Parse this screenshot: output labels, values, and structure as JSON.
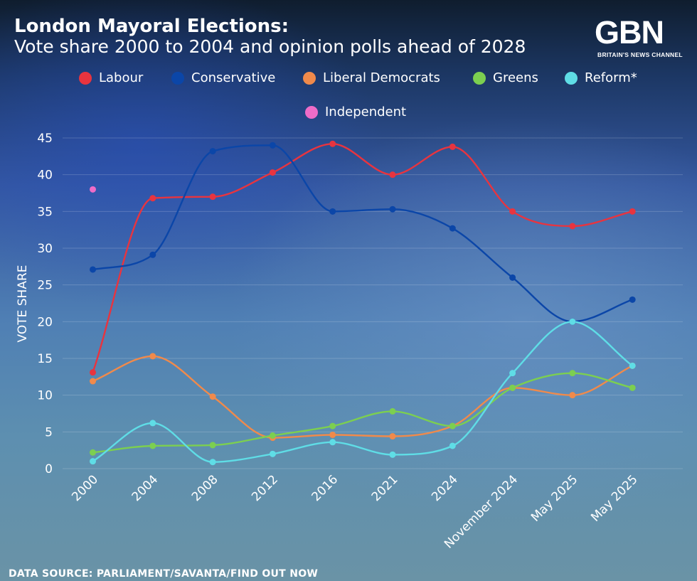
{
  "header": {
    "title": "London Mayoral Elections:",
    "subtitle": "Vote share 2000 to 2004 and opinion polls ahead of 2028"
  },
  "logo": {
    "text": "GBN",
    "tagline": "BRITAIN'S NEWS CHANNEL"
  },
  "legend": [
    {
      "label": "Labour",
      "color": "#e8343f"
    },
    {
      "label": "Conservative",
      "color": "#0b46a8"
    },
    {
      "label": "Liberal Democrats",
      "color": "#f08a4b"
    },
    {
      "label": "Greens",
      "color": "#7ccf50"
    },
    {
      "label": "Reform*",
      "color": "#5fdde6"
    },
    {
      "label": "Independent",
      "color": "#ee6cc8"
    }
  ],
  "footer": {
    "source": "DATA SOURCE: PARLIAMENT/SAVANTA/FIND OUT NOW"
  },
  "chart_data": {
    "type": "line",
    "title": "London Mayoral Elections: Vote share 2000 to 2004 and opinion polls ahead of 2028",
    "xlabel": "",
    "ylabel": "VOTE SHARE",
    "ylim": [
      0,
      45
    ],
    "yticks": [
      0,
      5,
      10,
      15,
      20,
      25,
      30,
      35,
      40,
      45
    ],
    "grid": true,
    "categories": [
      "2000",
      "2004",
      "2008",
      "2012",
      "2016",
      "2021",
      "2024",
      "November 2024",
      "May 2025",
      "May 2025"
    ],
    "series": [
      {
        "name": "Labour",
        "color": "#e8343f",
        "values": [
          13.1,
          36.8,
          37.0,
          40.3,
          44.2,
          40.0,
          43.8,
          35.0,
          33.0,
          35.0
        ]
      },
      {
        "name": "Conservative",
        "color": "#0b46a8",
        "values": [
          27.1,
          29.1,
          43.2,
          44.0,
          35.0,
          35.3,
          32.7,
          26.0,
          20.0,
          23.0
        ]
      },
      {
        "name": "Liberal Democrats",
        "color": "#f08a4b",
        "values": [
          11.9,
          15.3,
          9.8,
          4.2,
          4.6,
          4.4,
          5.8,
          11.0,
          10.0,
          14.0
        ]
      },
      {
        "name": "Greens",
        "color": "#7ccf50",
        "values": [
          2.2,
          3.1,
          3.2,
          4.5,
          5.8,
          7.8,
          5.8,
          11.0,
          13.0,
          11.0
        ]
      },
      {
        "name": "Reform*",
        "color": "#5fdde6",
        "values": [
          1.0,
          6.2,
          0.9,
          2.0,
          3.6,
          1.9,
          3.1,
          13.0,
          20.0,
          14.0
        ]
      },
      {
        "name": "Independent",
        "color": "#ee6cc8",
        "values": [
          38.0,
          null,
          null,
          null,
          null,
          null,
          null,
          null,
          null,
          null
        ]
      }
    ]
  }
}
